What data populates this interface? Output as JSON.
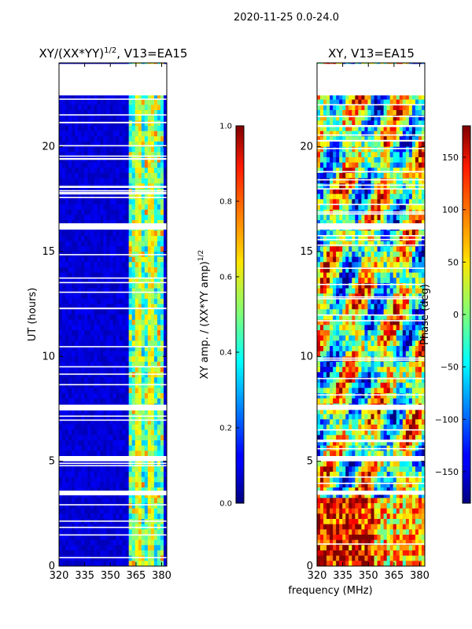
{
  "page": {
    "suptitle": "2020-11-25 0.0-24.0"
  },
  "chart_data": [
    {
      "type": "heatmap",
      "title": "XY/(XX*YY)",
      "title_sup": "1/2",
      "title_tail": ", V13=EA15",
      "xlabel": "",
      "ylabel": "UT (hours)",
      "xlim": [
        320,
        383
      ],
      "ylim": [
        0,
        24
      ],
      "xticks": [
        320,
        335,
        350,
        365,
        380
      ],
      "yticks": [
        0,
        5,
        10,
        15,
        20
      ],
      "grid": false,
      "colorbar": {
        "label": "XY amp. / (XX*YY amp)",
        "label_sup": "1/2",
        "range": [
          0.0,
          1.0
        ],
        "ticks": [
          "0.0",
          "0.2",
          "0.4",
          "0.6",
          "0.8",
          "1.0"
        ],
        "colormap": "jet"
      },
      "flagged_ut_hours": [
        [
          22.45,
          23.95
        ],
        [
          16.05,
          16.35
        ],
        [
          7.45,
          7.7
        ],
        [
          5.0,
          5.25
        ],
        [
          3.4,
          3.6
        ]
      ]
    },
    {
      "type": "heatmap",
      "title": "XY, V13=EA15",
      "xlabel": "frequency (MHz)",
      "ylabel": "",
      "xlim": [
        320,
        383
      ],
      "ylim": [
        0,
        24
      ],
      "xticks": [
        320,
        335,
        350,
        365,
        380
      ],
      "yticks": [
        0,
        5,
        10,
        15,
        20
      ],
      "grid": false,
      "colorbar": {
        "label": "Phase (deg)",
        "range": [
          -180,
          180
        ],
        "ticks": [
          "−150",
          "−100",
          "−50",
          "0",
          "50",
          "100",
          "150"
        ],
        "tick_values": [
          -150,
          -100,
          -50,
          0,
          50,
          100,
          150
        ],
        "colormap": "jet"
      },
      "flagged_ut_hours": [
        [
          22.45,
          23.95
        ],
        [
          16.05,
          16.35
        ],
        [
          7.45,
          7.7
        ],
        [
          5.0,
          5.25
        ],
        [
          3.4,
          3.6
        ]
      ]
    }
  ]
}
